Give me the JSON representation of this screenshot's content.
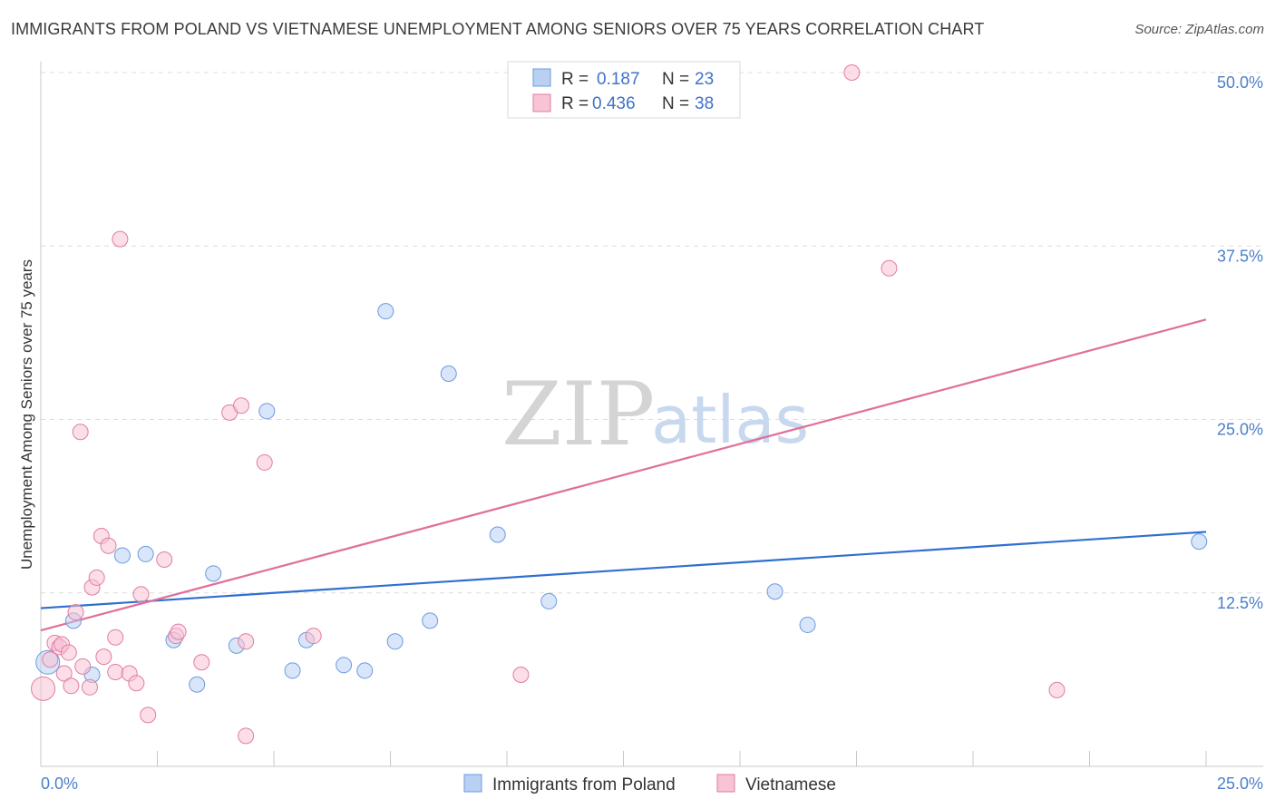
{
  "chart_data": {
    "type": "scatter",
    "title": "IMMIGRANTS FROM POLAND VS VIETNAMESE UNEMPLOYMENT AMONG SENIORS OVER 75 YEARS CORRELATION CHART",
    "source": "Source: ZipAtlas.com",
    "xlabel": "",
    "ylabel": "Unemployment Among Seniors over 75 years",
    "xlim": [
      0,
      25
    ],
    "ylim": [
      0,
      50
    ],
    "x_tick_labels": [
      "0.0%",
      "25.0%"
    ],
    "y_ticks": [
      12.5,
      25.0,
      37.5,
      50.0
    ],
    "y_tick_labels": [
      "12.5%",
      "25.0%",
      "37.5%",
      "50.0%"
    ],
    "watermark": {
      "zip": "ZIP",
      "atlas": "atlas"
    },
    "legend": {
      "entries": [
        {
          "r_label": "R =",
          "r_value": "0.187",
          "n_label": "N =",
          "n_value": "23"
        },
        {
          "r_label": "R =",
          "r_value": "0.436",
          "n_label": "N =",
          "n_value": "38"
        }
      ]
    },
    "series": [
      {
        "name": "Immigrants from Poland",
        "color": "#6b9be0",
        "fill": "#b9d0f3",
        "trend": {
          "x0": 0,
          "y0": 11.4,
          "x1": 25,
          "y1": 16.9
        },
        "points": [
          {
            "x": 0.15,
            "y": 7.5,
            "big": true
          },
          {
            "x": 0.7,
            "y": 10.5
          },
          {
            "x": 1.1,
            "y": 6.6
          },
          {
            "x": 1.75,
            "y": 15.2
          },
          {
            "x": 2.25,
            "y": 15.3
          },
          {
            "x": 2.85,
            "y": 9.1
          },
          {
            "x": 3.35,
            "y": 5.9
          },
          {
            "x": 3.7,
            "y": 13.9
          },
          {
            "x": 4.2,
            "y": 8.7
          },
          {
            "x": 4.85,
            "y": 25.6
          },
          {
            "x": 5.4,
            "y": 6.9
          },
          {
            "x": 5.7,
            "y": 9.1
          },
          {
            "x": 6.5,
            "y": 7.3
          },
          {
            "x": 6.95,
            "y": 6.9
          },
          {
            "x": 7.4,
            "y": 32.8
          },
          {
            "x": 7.6,
            "y": 9.0
          },
          {
            "x": 8.35,
            "y": 10.5
          },
          {
            "x": 8.75,
            "y": 28.3
          },
          {
            "x": 9.8,
            "y": 16.7
          },
          {
            "x": 10.9,
            "y": 11.9
          },
          {
            "x": 15.75,
            "y": 12.6
          },
          {
            "x": 16.45,
            "y": 10.2
          },
          {
            "x": 24.85,
            "y": 16.2
          }
        ]
      },
      {
        "name": "Vietnamese",
        "color": "#e07ea0",
        "fill": "#f8c3d5",
        "trend": {
          "x0": 0,
          "y0": 9.8,
          "x1": 25,
          "y1": 32.2
        },
        "points": [
          {
            "x": 0.05,
            "y": 5.6,
            "big": true
          },
          {
            "x": 0.2,
            "y": 7.7
          },
          {
            "x": 0.3,
            "y": 8.9
          },
          {
            "x": 0.4,
            "y": 8.6
          },
          {
            "x": 0.45,
            "y": 8.8
          },
          {
            "x": 0.5,
            "y": 6.7
          },
          {
            "x": 0.6,
            "y": 8.2
          },
          {
            "x": 0.65,
            "y": 5.8
          },
          {
            "x": 0.75,
            "y": 11.1
          },
          {
            "x": 0.85,
            "y": 24.1
          },
          {
            "x": 0.9,
            "y": 7.2
          },
          {
            "x": 1.05,
            "y": 5.7
          },
          {
            "x": 1.1,
            "y": 12.9
          },
          {
            "x": 1.2,
            "y": 13.6
          },
          {
            "x": 1.3,
            "y": 16.6
          },
          {
            "x": 1.35,
            "y": 7.9
          },
          {
            "x": 1.45,
            "y": 15.9
          },
          {
            "x": 1.6,
            "y": 9.3
          },
          {
            "x": 1.6,
            "y": 6.8
          },
          {
            "x": 1.7,
            "y": 38.0
          },
          {
            "x": 1.9,
            "y": 6.7
          },
          {
            "x": 2.05,
            "y": 6.0
          },
          {
            "x": 2.15,
            "y": 12.4
          },
          {
            "x": 2.3,
            "y": 3.7
          },
          {
            "x": 2.65,
            "y": 14.9
          },
          {
            "x": 2.9,
            "y": 9.4
          },
          {
            "x": 2.95,
            "y": 9.7
          },
          {
            "x": 3.45,
            "y": 7.5
          },
          {
            "x": 4.05,
            "y": 25.5
          },
          {
            "x": 4.3,
            "y": 26.0
          },
          {
            "x": 4.4,
            "y": 2.2
          },
          {
            "x": 4.4,
            "y": 9.0
          },
          {
            "x": 4.8,
            "y": 21.9
          },
          {
            "x": 5.85,
            "y": 9.4
          },
          {
            "x": 10.3,
            "y": 6.6
          },
          {
            "x": 17.4,
            "y": 50.0
          },
          {
            "x": 18.2,
            "y": 35.9
          },
          {
            "x": 21.8,
            "y": 5.5
          }
        ]
      }
    ]
  }
}
